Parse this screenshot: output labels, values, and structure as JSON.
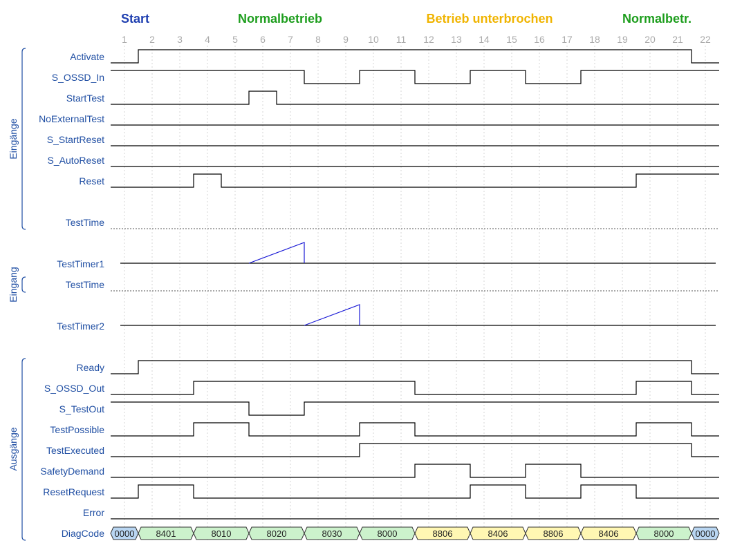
{
  "phases": [
    {
      "label": "Start",
      "color": "#1f3fb0"
    },
    {
      "label": "Normalbetrieb",
      "color": "#1e9e1e"
    },
    {
      "label": "Betrieb unterbrochen",
      "color": "#f0b400"
    },
    {
      "label": "Normalbetr.",
      "color": "#1e9e1e"
    }
  ],
  "steps": [
    "1",
    "2",
    "3",
    "4",
    "5",
    "6",
    "7",
    "8",
    "9",
    "10",
    "11",
    "12",
    "13",
    "14",
    "15",
    "16",
    "17",
    "18",
    "19",
    "20",
    "21",
    "22"
  ],
  "groups": [
    {
      "label": "Eingänge"
    },
    {
      "label": "Eingang"
    },
    {
      "label": "Ausgänge"
    }
  ],
  "signals": {
    "activate": {
      "label": "Activate",
      "levels": [
        0,
        1,
        1,
        1,
        1,
        1,
        1,
        1,
        1,
        1,
        1,
        1,
        1,
        1,
        1,
        1,
        1,
        1,
        1,
        1,
        1,
        0
      ]
    },
    "s_ossd_in": {
      "label": "S_OSSD_In",
      "levels": [
        1,
        1,
        1,
        1,
        1,
        1,
        1,
        0,
        0,
        1,
        1,
        0,
        0,
        1,
        1,
        0,
        0,
        1,
        1,
        1,
        1,
        1
      ]
    },
    "starttest": {
      "label": "StartTest",
      "levels": [
        0,
        0,
        0,
        0,
        0,
        1,
        0,
        0,
        0,
        0,
        0,
        0,
        0,
        0,
        0,
        0,
        0,
        0,
        0,
        0,
        0,
        0
      ]
    },
    "noexternaltest": {
      "label": "NoExternalTest",
      "levels": [
        0,
        0,
        0,
        0,
        0,
        0,
        0,
        0,
        0,
        0,
        0,
        0,
        0,
        0,
        0,
        0,
        0,
        0,
        0,
        0,
        0,
        0
      ]
    },
    "s_startreset": {
      "label": "S_StartReset",
      "levels": [
        0,
        0,
        0,
        0,
        0,
        0,
        0,
        0,
        0,
        0,
        0,
        0,
        0,
        0,
        0,
        0,
        0,
        0,
        0,
        0,
        0,
        0
      ]
    },
    "s_autoreset": {
      "label": "S_AutoReset",
      "levels": [
        0,
        0,
        0,
        0,
        0,
        0,
        0,
        0,
        0,
        0,
        0,
        0,
        0,
        0,
        0,
        0,
        0,
        0,
        0,
        0,
        0,
        0
      ]
    },
    "reset": {
      "label": "Reset",
      "levels": [
        0,
        0,
        0,
        1,
        0,
        0,
        0,
        0,
        0,
        0,
        0,
        0,
        0,
        0,
        0,
        0,
        0,
        0,
        0,
        1,
        1,
        1
      ]
    },
    "testtime1": {
      "label": "TestTime"
    },
    "testtimer1": {
      "label": "TestTimer1",
      "ramp": {
        "from_step": 6,
        "to_step": 7
      }
    },
    "testtime2": {
      "label": "TestTime"
    },
    "testtimer2": {
      "label": "TestTimer2",
      "ramp": {
        "from_step": 8,
        "to_step": 9
      }
    },
    "ready": {
      "label": "Ready",
      "levels": [
        0,
        1,
        1,
        1,
        1,
        1,
        1,
        1,
        1,
        1,
        1,
        1,
        1,
        1,
        1,
        1,
        1,
        1,
        1,
        1,
        1,
        0
      ]
    },
    "s_ossd_out": {
      "label": "S_OSSD_Out",
      "levels": [
        0,
        0,
        0,
        1,
        1,
        1,
        1,
        1,
        1,
        1,
        1,
        0,
        0,
        0,
        0,
        0,
        0,
        0,
        0,
        1,
        1,
        0
      ]
    },
    "s_testout": {
      "label": "S_TestOut",
      "levels": [
        1,
        1,
        1,
        1,
        1,
        0,
        0,
        1,
        1,
        1,
        1,
        1,
        1,
        1,
        1,
        1,
        1,
        1,
        1,
        1,
        1,
        1
      ]
    },
    "testpossible": {
      "label": "TestPossible",
      "levels": [
        0,
        0,
        0,
        1,
        1,
        0,
        0,
        0,
        0,
        1,
        1,
        0,
        0,
        0,
        0,
        0,
        0,
        0,
        0,
        1,
        1,
        0
      ]
    },
    "testexecuted": {
      "label": "TestExecuted",
      "levels": [
        0,
        0,
        0,
        0,
        0,
        0,
        0,
        0,
        0,
        1,
        1,
        1,
        1,
        1,
        1,
        1,
        1,
        1,
        1,
        1,
        1,
        0
      ]
    },
    "safetydemand": {
      "label": "SafetyDemand",
      "levels": [
        0,
        0,
        0,
        0,
        0,
        0,
        0,
        0,
        0,
        0,
        0,
        1,
        1,
        0,
        0,
        1,
        1,
        0,
        0,
        0,
        0,
        0
      ]
    },
    "resetrequest": {
      "label": "ResetRequest",
      "levels": [
        0,
        1,
        1,
        0,
        0,
        0,
        0,
        0,
        0,
        0,
        0,
        0,
        0,
        1,
        1,
        0,
        0,
        1,
        1,
        0,
        0,
        0
      ]
    },
    "error": {
      "label": "Error",
      "levels": [
        0,
        0,
        0,
        0,
        0,
        0,
        0,
        0,
        0,
        0,
        0,
        0,
        0,
        0,
        0,
        0,
        0,
        0,
        0,
        0,
        0,
        0
      ]
    },
    "diagcode": {
      "label": "DiagCode"
    }
  },
  "diag_segments": [
    {
      "text": "0000",
      "start_step": 1,
      "end_step": 1,
      "color": "#b9d6f2"
    },
    {
      "text": "8401",
      "start_step": 2,
      "end_step": 3,
      "color": "#ccf2cc"
    },
    {
      "text": "8010",
      "start_step": 4,
      "end_step": 5,
      "color": "#ccf2cc"
    },
    {
      "text": "8020",
      "start_step": 6,
      "end_step": 7,
      "color": "#ccf2cc"
    },
    {
      "text": "8030",
      "start_step": 8,
      "end_step": 9,
      "color": "#ccf2cc"
    },
    {
      "text": "8000",
      "start_step": 10,
      "end_step": 11,
      "color": "#ccf2cc"
    },
    {
      "text": "8806",
      "start_step": 12,
      "end_step": 13,
      "color": "#fff7b3"
    },
    {
      "text": "8406",
      "start_step": 14,
      "end_step": 15,
      "color": "#fff7b3"
    },
    {
      "text": "8806",
      "start_step": 16,
      "end_step": 17,
      "color": "#fff7b3"
    },
    {
      "text": "8406",
      "start_step": 18,
      "end_step": 19,
      "color": "#fff7b3"
    },
    {
      "text": "8000",
      "start_step": 20,
      "end_step": 21,
      "color": "#ccf2cc"
    },
    {
      "text": "0000",
      "start_step": 22,
      "end_step": 22,
      "color": "#b9d6f2"
    }
  ],
  "colors": {
    "label": "#1f4ea3",
    "wave": "#000000",
    "ramp": "#1a1ad6",
    "grid": "#d4d4d4",
    "step_number": "#aaaaaa"
  }
}
